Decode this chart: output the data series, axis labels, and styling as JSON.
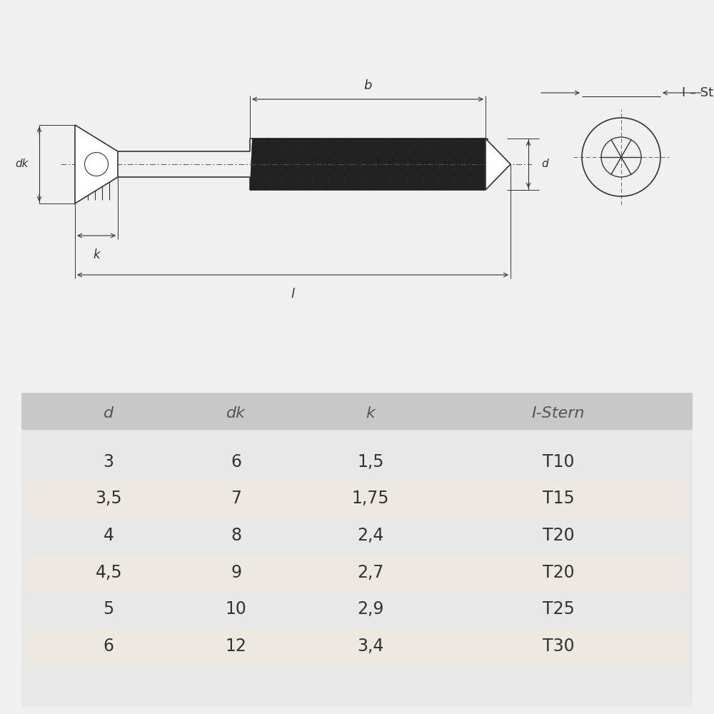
{
  "bg_color": "#f0f0f0",
  "drawing_bg": "#ffffff",
  "table_bg": "#e8e8e8",
  "row_alt_bg": "#ede8e0",
  "row_white_bg": "#f5f5f5",
  "header_bg": "#c8c8c8",
  "text_color": "#333333",
  "line_color": "#333333",
  "table_headers": [
    "d",
    "dk",
    "k",
    "I-Stern"
  ],
  "table_rows": [
    [
      "3",
      "6",
      "1,5",
      "T10"
    ],
    [
      "3,5",
      "7",
      "1,75",
      "T15"
    ],
    [
      "4",
      "8",
      "2,4",
      "T20"
    ],
    [
      "4,5",
      "9",
      "2,7",
      "T20"
    ],
    [
      "5",
      "10",
      "2,9",
      "T25"
    ],
    [
      "6",
      "12",
      "3,4",
      "T30"
    ]
  ]
}
